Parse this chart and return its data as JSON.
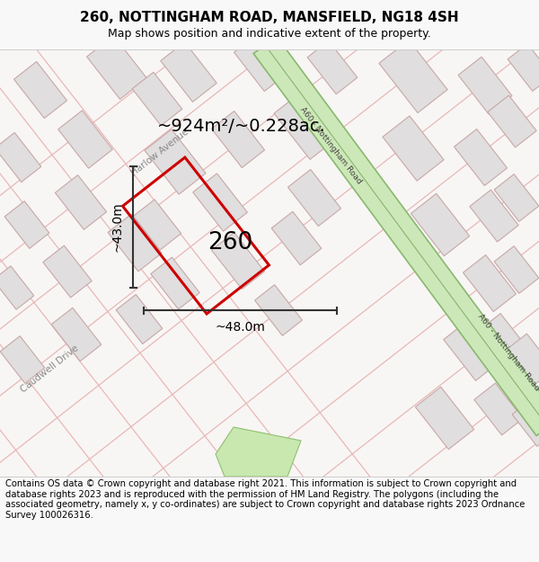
{
  "title": "260, NOTTINGHAM ROAD, MANSFIELD, NG18 4SH",
  "subtitle": "Map shows position and indicative extent of the property.",
  "footer": "Contains OS data © Crown copyright and database right 2021. This information is subject to Crown copyright and database rights 2023 and is reproduced with the permission of HM Land Registry. The polygons (including the associated geometry, namely x, y co-ordinates) are subject to Crown copyright and database rights 2023 Ordnance Survey 100026316.",
  "area_label": "~924m²/~0.228ac.",
  "property_number": "260",
  "dim_width": "~48.0m",
  "dim_height": "~43.0m",
  "bg_color": "#f8f8f8",
  "map_bg": "#f5f0ee",
  "road_green_fill": "#c8dfc0",
  "road_green_edge": "#8ab878",
  "road_green_center": "#5a9040",
  "property_color": "#cc0000",
  "block_fill": "#e0dede",
  "block_edge": "#c8a8a8",
  "street_color": "#e8b8b8",
  "street_lw": 0.9,
  "title_fontsize": 11,
  "subtitle_fontsize": 9,
  "footer_fontsize": 7.2,
  "street_label_color": "#888888",
  "road_label_color": "#444444"
}
